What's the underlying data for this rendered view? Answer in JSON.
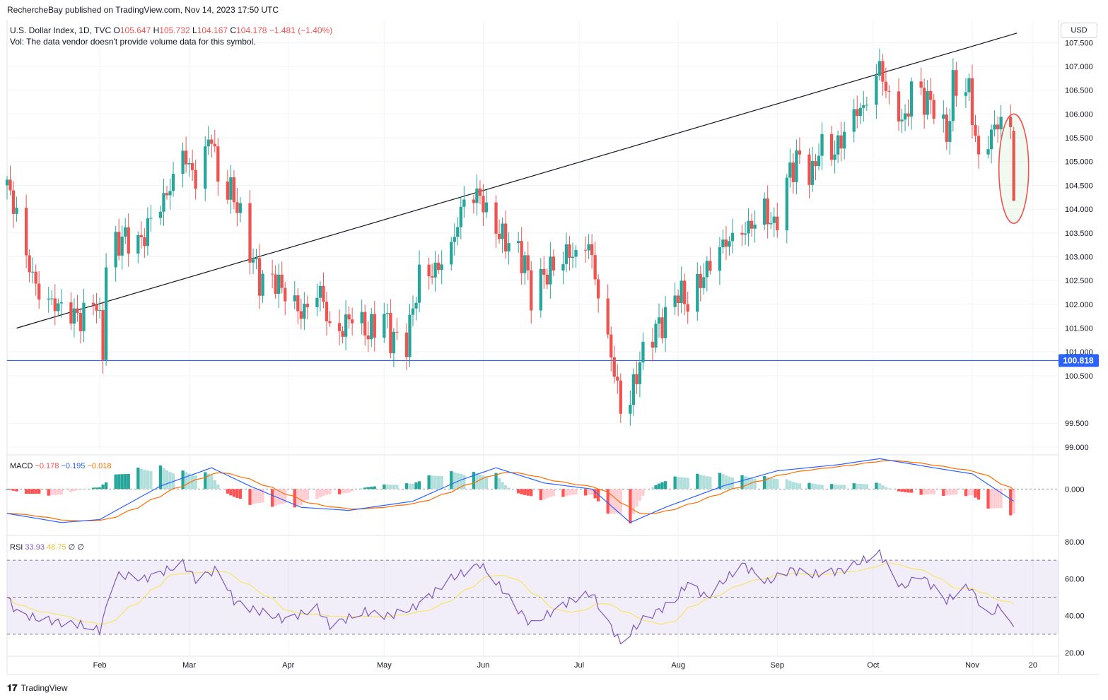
{
  "header": {
    "publisher": "RechercheBay published on TradingView.com, Nov 14, 2023 17:50 UTC"
  },
  "footer": {
    "brand": "TradingView"
  },
  "colors": {
    "up": "#26a69a",
    "down": "#ef5350",
    "grid": "#f0f3fa",
    "macd": "#2962ff",
    "signal": "#ff6d00",
    "rsi": "#7e57c2",
    "rsi_ma": "#f7e468",
    "hline": "#2962ff"
  },
  "chart_data": {
    "type": "candlestick",
    "symbol_line": {
      "name": "U.S. Dollar Index, 1D, TVC",
      "open_label": "O",
      "open": "105.647",
      "high_label": "H",
      "high": "105.732",
      "low_label": "L",
      "low": "104.167",
      "close_label": "C",
      "close": "104.178",
      "change": "−1.481 (−1.40%)"
    },
    "vol_note": "Vol: The data vendor doesn't provide volume data for this symbol.",
    "currency": "USD",
    "price_ticks": [
      "107.500",
      "107.000",
      "106.500",
      "106.000",
      "105.500",
      "105.000",
      "104.500",
      "104.000",
      "103.500",
      "103.000",
      "102.500",
      "102.000",
      "101.500",
      "101.000",
      "100.500",
      "99.500",
      "99.000"
    ],
    "price_range": [
      98.85,
      107.95
    ],
    "horizontal_line": {
      "value": 100.818,
      "label": "100.818"
    },
    "trendline": {
      "from": [
        "2023-01-06",
        101.5
      ],
      "to": [
        "2023-11-15",
        107.7
      ]
    },
    "x_labels": [
      "Feb",
      "Mar",
      "Apr",
      "May",
      "Jun",
      "Jul",
      "Aug",
      "Sep",
      "Oct",
      "Nov",
      "20"
    ],
    "x_range": [
      "2023-01-03",
      "2023-11-28"
    ],
    "anchors": [
      [
        "2023-01-03",
        104.5
      ],
      [
        "2023-01-06",
        103.9
      ],
      [
        "2023-01-09",
        103.0
      ],
      [
        "2023-01-13",
        102.2
      ],
      [
        "2023-01-18",
        102.0
      ],
      [
        "2023-01-26",
        101.7
      ],
      [
        "2023-01-31",
        102.1
      ],
      [
        "2023-02-02",
        101.0
      ],
      [
        "2023-02-03",
        102.9
      ],
      [
        "2023-02-08",
        103.4
      ],
      [
        "2023-02-14",
        103.3
      ],
      [
        "2023-02-17",
        103.8
      ],
      [
        "2023-02-22",
        104.3
      ],
      [
        "2023-02-27",
        105.2
      ],
      [
        "2023-03-03",
        104.6
      ],
      [
        "2023-03-08",
        105.6
      ],
      [
        "2023-03-10",
        104.6
      ],
      [
        "2023-03-15",
        104.3
      ],
      [
        "2023-03-17",
        103.8
      ],
      [
        "2023-03-23",
        102.5
      ],
      [
        "2023-03-28",
        102.5
      ],
      [
        "2023-04-03",
        102.0
      ],
      [
        "2023-04-05",
        101.8
      ],
      [
        "2023-04-11",
        102.3
      ],
      [
        "2023-04-14",
        101.5
      ],
      [
        "2023-04-17",
        101.4
      ],
      [
        "2023-04-21",
        101.8
      ],
      [
        "2023-04-26",
        101.4
      ],
      [
        "2023-05-01",
        101.8
      ],
      [
        "2023-05-03",
        101.3
      ],
      [
        "2023-05-08",
        101.2
      ],
      [
        "2023-05-12",
        102.6
      ],
      [
        "2023-05-17",
        102.7
      ],
      [
        "2023-05-22",
        103.2
      ],
      [
        "2023-05-26",
        104.2
      ],
      [
        "2023-05-31",
        104.3
      ],
      [
        "2023-06-02",
        103.9
      ],
      [
        "2023-06-07",
        103.4
      ],
      [
        "2023-06-09",
        103.3
      ],
      [
        "2023-06-14",
        102.9
      ],
      [
        "2023-06-16",
        102.2
      ],
      [
        "2023-06-20",
        102.6
      ],
      [
        "2023-06-23",
        102.8
      ],
      [
        "2023-06-28",
        103.1
      ],
      [
        "2023-06-30",
        103.0
      ],
      [
        "2023-07-04",
        103.3
      ],
      [
        "2023-07-07",
        102.2
      ],
      [
        "2023-07-12",
        100.6
      ],
      [
        "2023-07-14",
        99.8
      ],
      [
        "2023-07-17",
        100.0
      ],
      [
        "2023-07-20",
        100.8
      ],
      [
        "2023-07-24",
        101.4
      ],
      [
        "2023-07-28",
        101.7
      ],
      [
        "2023-08-01",
        102.3
      ],
      [
        "2023-08-04",
        102.0
      ],
      [
        "2023-08-08",
        102.5
      ],
      [
        "2023-08-14",
        103.2
      ],
      [
        "2023-08-18",
        103.4
      ],
      [
        "2023-08-23",
        103.6
      ],
      [
        "2023-08-28",
        104.0
      ],
      [
        "2023-08-31",
        103.6
      ],
      [
        "2023-09-05",
        104.8
      ],
      [
        "2023-09-08",
        105.1
      ],
      [
        "2023-09-12",
        104.7
      ],
      [
        "2023-09-14",
        105.3
      ],
      [
        "2023-09-19",
        105.2
      ],
      [
        "2023-09-22",
        105.6
      ],
      [
        "2023-09-26",
        106.1
      ],
      [
        "2023-09-28",
        106.1
      ],
      [
        "2023-10-03",
        107.0
      ],
      [
        "2023-10-06",
        106.3
      ],
      [
        "2023-10-11",
        105.8
      ],
      [
        "2023-10-13",
        106.6
      ],
      [
        "2023-10-17",
        106.3
      ],
      [
        "2023-10-20",
        106.2
      ],
      [
        "2023-10-24",
        105.5
      ],
      [
        "2023-10-26",
        106.6
      ],
      [
        "2023-10-31",
        106.5
      ],
      [
        "2023-11-03",
        105.0
      ],
      [
        "2023-11-07",
        105.6
      ],
      [
        "2023-11-10",
        105.9
      ],
      [
        "2023-11-13",
        105.65
      ]
    ],
    "last_candle": {
      "date": "2023-11-14",
      "open": 105.647,
      "high": 105.732,
      "low": 104.167,
      "close": 104.178
    },
    "highlight_ellipse": {
      "date": "2023-11-14",
      "range": [
        103.7,
        106.0
      ]
    },
    "macd": {
      "label": "MACD",
      "values": [
        "−0.178",
        "−0.195",
        "−0.018"
      ],
      "ticks": [
        "0.000"
      ],
      "range": [
        -0.75,
        0.55
      ],
      "anchors": [
        [
          "2023-01-03",
          -0.4
        ],
        [
          "2023-01-20",
          -0.55
        ],
        [
          "2023-02-01",
          -0.5
        ],
        [
          "2023-02-20",
          0.05
        ],
        [
          "2023-03-08",
          0.35
        ],
        [
          "2023-03-20",
          0.05
        ],
        [
          "2023-04-05",
          -0.3
        ],
        [
          "2023-04-20",
          -0.35
        ],
        [
          "2023-05-10",
          -0.2
        ],
        [
          "2023-05-25",
          0.15
        ],
        [
          "2023-06-05",
          0.35
        ],
        [
          "2023-06-20",
          0.1
        ],
        [
          "2023-07-05",
          0.0
        ],
        [
          "2023-07-17",
          -0.55
        ],
        [
          "2023-07-28",
          -0.3
        ],
        [
          "2023-08-15",
          0.05
        ],
        [
          "2023-09-01",
          0.3
        ],
        [
          "2023-09-20",
          0.4
        ],
        [
          "2023-10-03",
          0.5
        ],
        [
          "2023-10-20",
          0.35
        ],
        [
          "2023-11-01",
          0.25
        ],
        [
          "2023-11-14",
          -0.2
        ]
      ]
    },
    "rsi": {
      "label": "RSI",
      "values": [
        "33.93",
        "48.75",
        "∅",
        "∅"
      ],
      "ticks": [
        "80.00",
        "60.00",
        "40.00",
        "20.00"
      ],
      "range": [
        20,
        80
      ],
      "bands": [
        30,
        50,
        70
      ],
      "anchors": [
        [
          "2023-01-03",
          50
        ],
        [
          "2023-01-06",
          42
        ],
        [
          "2023-01-13",
          38
        ],
        [
          "2023-01-26",
          35
        ],
        [
          "2023-02-01",
          32
        ],
        [
          "2023-02-06",
          62
        ],
        [
          "2023-02-15",
          60
        ],
        [
          "2023-02-27",
          68
        ],
        [
          "2023-03-03",
          60
        ],
        [
          "2023-03-10",
          65
        ],
        [
          "2023-03-15",
          48
        ],
        [
          "2023-03-23",
          42
        ],
        [
          "2023-03-31",
          38
        ],
        [
          "2023-04-10",
          44
        ],
        [
          "2023-04-14",
          35
        ],
        [
          "2023-04-25",
          42
        ],
        [
          "2023-05-03",
          40
        ],
        [
          "2023-05-10",
          44
        ],
        [
          "2023-05-22",
          60
        ],
        [
          "2023-05-31",
          68
        ],
        [
          "2023-06-07",
          54
        ],
        [
          "2023-06-16",
          35
        ],
        [
          "2023-06-28",
          48
        ],
        [
          "2023-07-05",
          52
        ],
        [
          "2023-07-14",
          25
        ],
        [
          "2023-07-21",
          38
        ],
        [
          "2023-07-31",
          48
        ],
        [
          "2023-08-04",
          58
        ],
        [
          "2023-08-10",
          50
        ],
        [
          "2023-08-21",
          68
        ],
        [
          "2023-08-29",
          58
        ],
        [
          "2023-09-05",
          65
        ],
        [
          "2023-09-12",
          62
        ],
        [
          "2023-09-22",
          65
        ],
        [
          "2023-10-03",
          74
        ],
        [
          "2023-10-10",
          55
        ],
        [
          "2023-10-16",
          62
        ],
        [
          "2023-10-24",
          48
        ],
        [
          "2023-10-31",
          56
        ],
        [
          "2023-11-06",
          40
        ],
        [
          "2023-11-10",
          45
        ],
        [
          "2023-11-14",
          33.93
        ]
      ]
    }
  }
}
